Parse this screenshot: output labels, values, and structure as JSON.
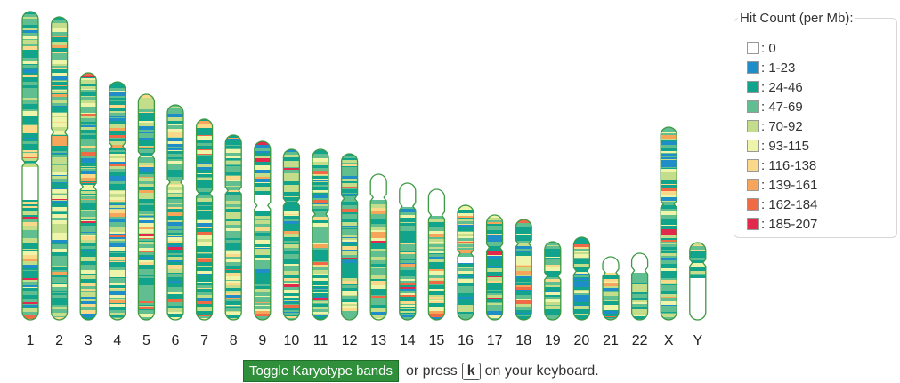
{
  "legend": {
    "title": "Hit Count (per Mb):",
    "items": [
      {
        "label": ": 0",
        "color": "#ffffff"
      },
      {
        "label": ": 1-23",
        "color": "#1f8ec8"
      },
      {
        "label": ": 24-46",
        "color": "#12a38c"
      },
      {
        "label": ": 47-69",
        "color": "#60be91"
      },
      {
        "label": ": 70-92",
        "color": "#c4dd8a"
      },
      {
        "label": ": 93-115",
        "color": "#eef4a9"
      },
      {
        "label": ": 116-138",
        "color": "#fbd98a"
      },
      {
        "label": ": 139-161",
        "color": "#f6a55a"
      },
      {
        "label": ": 162-184",
        "color": "#f06a45"
      },
      {
        "label": ": 185-207",
        "color": "#e3284e"
      }
    ]
  },
  "chromosomes": [
    {
      "name": "1",
      "arm_ratio": 0.49
    },
    {
      "name": "2",
      "arm_ratio": 0.38
    },
    {
      "name": "3",
      "arm_ratio": 0.46
    },
    {
      "name": "4",
      "arm_ratio": 0.27
    },
    {
      "name": "5",
      "arm_ratio": 0.27
    },
    {
      "name": "6",
      "arm_ratio": 0.36
    },
    {
      "name": "7",
      "arm_ratio": 0.37
    },
    {
      "name": "8",
      "arm_ratio": 0.3
    },
    {
      "name": "9",
      "arm_ratio": 0.36
    },
    {
      "name": "10",
      "arm_ratio": 0.31
    },
    {
      "name": "11",
      "arm_ratio": 0.38
    },
    {
      "name": "12",
      "arm_ratio": 0.27
    },
    {
      "name": "13",
      "arm_ratio": 0.16
    },
    {
      "name": "14",
      "arm_ratio": 0.17
    },
    {
      "name": "15",
      "arm_ratio": 0.2
    },
    {
      "name": "16",
      "arm_ratio": 0.42
    },
    {
      "name": "17",
      "arm_ratio": 0.31
    },
    {
      "name": "18",
      "arm_ratio": 0.24
    },
    {
      "name": "19",
      "arm_ratio": 0.44
    },
    {
      "name": "20",
      "arm_ratio": 0.41
    },
    {
      "name": "21",
      "arm_ratio": 0.25
    },
    {
      "name": "22",
      "arm_ratio": 0.26
    },
    {
      "name": "X",
      "arm_ratio": 0.4
    },
    {
      "name": "Y",
      "arm_ratio": 0.26
    }
  ],
  "controls": {
    "toggle_label": "Toggle Karyotype bands",
    "or_press": "or press",
    "key": "k",
    "on_keyboard": "on your keyboard."
  }
}
